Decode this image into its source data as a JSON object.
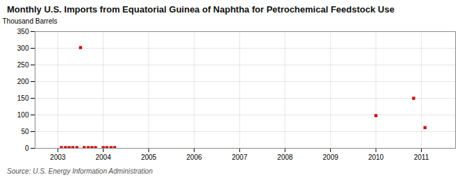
{
  "chart_data": {
    "type": "scatter",
    "title": "Monthly U.S. Imports from Equatorial Guinea of Naphtha for Petrochemical Feedstock Use",
    "ylabel": "Thousand Barrels",
    "source": "Source: U.S. Energy Information Administration",
    "x": [
      2003.08,
      2003.17,
      2003.25,
      2003.33,
      2003.42,
      2003.5,
      2003.58,
      2003.67,
      2003.75,
      2003.83,
      2004.0,
      2004.08,
      2004.17,
      2004.25,
      2010.0,
      2010.83,
      2011.08
    ],
    "values": [
      2,
      2,
      2,
      2,
      2,
      302,
      2,
      2,
      2,
      2,
      2,
      2,
      2,
      2,
      98,
      150,
      62
    ],
    "color": "#cc1111",
    "marker": "square",
    "grid": true,
    "xlim": [
      2002.5,
      2011.75
    ],
    "xticks": [
      2003,
      2004,
      2005,
      2006,
      2007,
      2008,
      2009,
      2010,
      2011
    ],
    "ylim": [
      0,
      350
    ],
    "yticks": [
      0,
      50,
      100,
      150,
      200,
      250,
      300,
      350
    ]
  }
}
